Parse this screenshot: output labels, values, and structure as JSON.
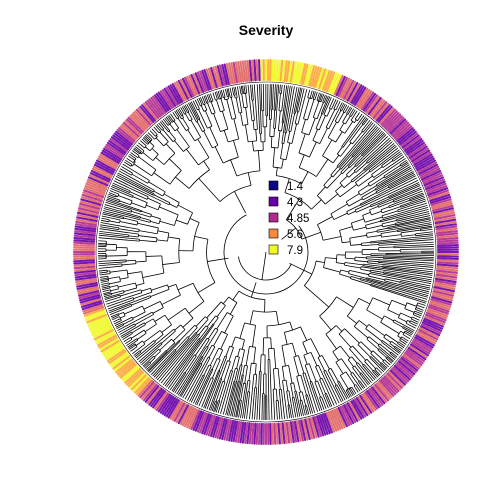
{
  "title": "Severity",
  "legend": {
    "items": [
      {
        "label": "1.4",
        "color": "#0d0887"
      },
      {
        "label": "4.3",
        "color": "#6a00a8"
      },
      {
        "label": "4.85",
        "color": "#b12a90"
      },
      {
        "label": "5.6",
        "color": "#f48a3a"
      },
      {
        "label": "7.9",
        "color": "#f0f921"
      }
    ]
  },
  "colors": {
    "edge": "#000000",
    "palette": [
      "#0d0887",
      "#6a00a8",
      "#b12a90",
      "#e16462",
      "#fca636",
      "#f0f921"
    ]
  }
}
